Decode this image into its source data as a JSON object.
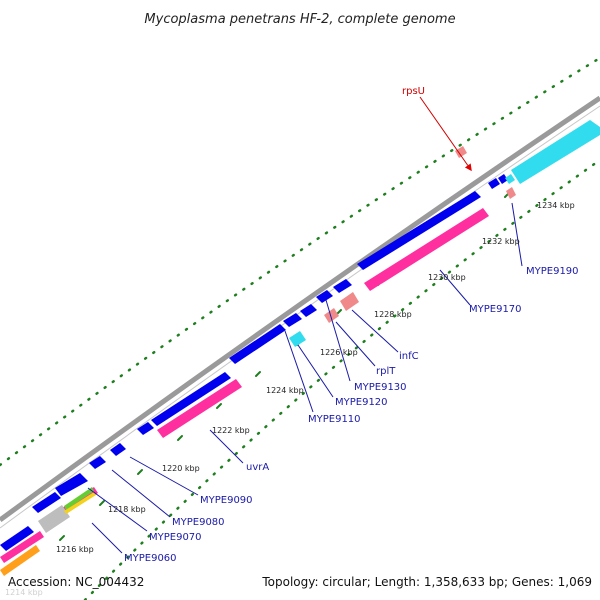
{
  "title": "Mycoplasma penetrans HF-2, complete genome",
  "accession": "Accession: NC_004432",
  "summary": "Topology: circular; Length: 1,358,633 bp; Genes: 1,069",
  "kbp_labels": [
    "1214 kbp",
    "1216 kbp",
    "1218 kbp",
    "1220 kbp",
    "1222 kbp",
    "1224 kbp",
    "1226 kbp",
    "1228 kbp",
    "1230 kbp",
    "1232 kbp",
    "1234 kbp"
  ],
  "gene_labels": {
    "rpsU": "rpsU",
    "MYPE9190": "MYPE9190",
    "MYPE9170": "MYPE9170",
    "infC": "infC",
    "rplT": "rplT",
    "MYPE9130": "MYPE9130",
    "MYPE9120": "MYPE9120",
    "MYPE9110": "MYPE9110",
    "uvrA": "uvrA",
    "MYPE9090": "MYPE9090",
    "MYPE9080": "MYPE9080",
    "MYPE9070": "MYPE9070",
    "MYPE9060": "MYPE9060"
  },
  "colors": {
    "backbone": "#9a9a9a",
    "forward_cds": "#0000ee",
    "reverse_cds": "#ff2fa0",
    "rna": "#31dcee",
    "trna": "#f08a8a",
    "gc_dots": "#1e7f1e",
    "label_line_blue": "#1a1aa8",
    "label_line_red": "#d10000"
  }
}
